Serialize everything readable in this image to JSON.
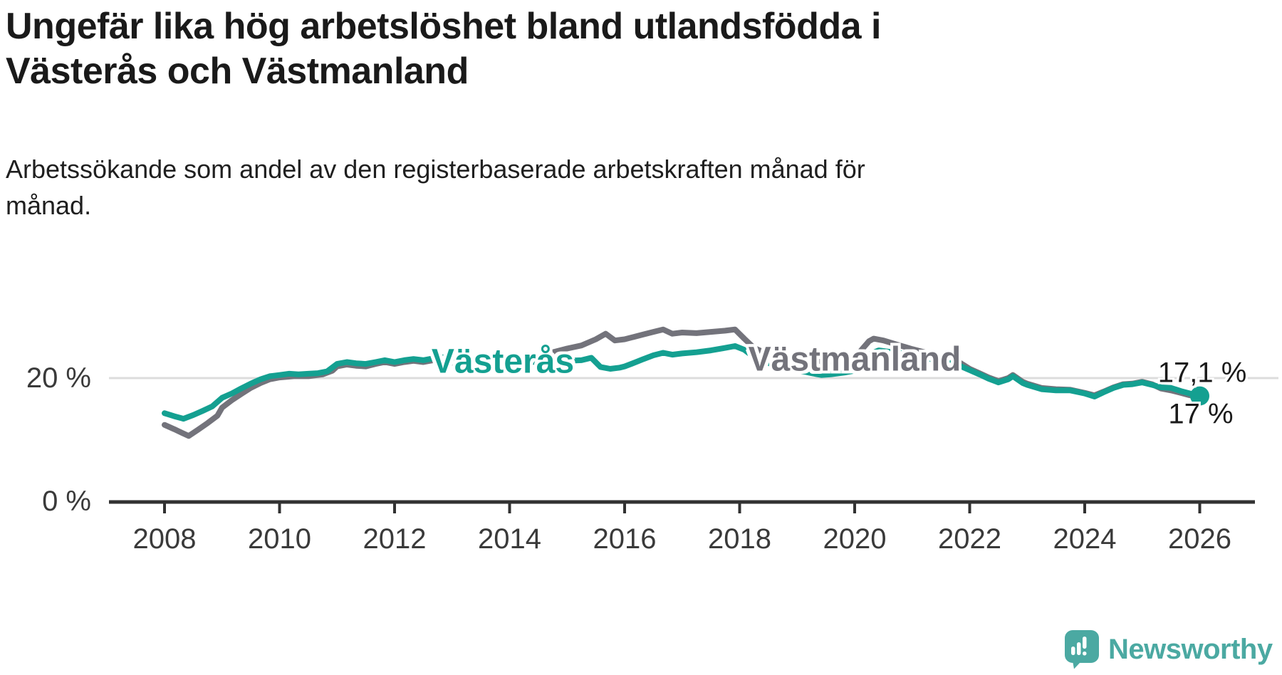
{
  "header": {
    "title": "Ungefär lika hög arbetslöshet bland utlandsfödda i Västerås och Västmanland",
    "title_lines": [
      "Ungefär lika hög arbetslöshet bland utlandsfödda i",
      "Västerås och Västmanland"
    ],
    "subtitle": "Arbetssökande som andel av den registerbaserade arbetskraften månad för månad.",
    "subtitle_lines": [
      "Arbetssökande som andel av den registerbaserade arbetskraften månad för",
      "månad."
    ]
  },
  "chart_data": {
    "type": "line",
    "title": "Ungefär lika hög arbetslöshet bland utlandsfödda i Västerås och Västmanland",
    "subtitle": "Arbetssökande som andel av den registerbaserade arbetskraften månad för månad.",
    "xlabel": "",
    "ylabel": "",
    "unit": "%",
    "xlim": [
      2007.1,
      2027.0
    ],
    "ylim": [
      0,
      30
    ],
    "grid": "horizontal, only at 20 %",
    "legend": "inline labels on lines",
    "x_ticks": [
      {
        "value": 2008,
        "label": "2008"
      },
      {
        "value": 2010,
        "label": "2010"
      },
      {
        "value": 2012,
        "label": "2012"
      },
      {
        "value": 2014,
        "label": "2014"
      },
      {
        "value": 2016,
        "label": "2016"
      },
      {
        "value": 2018,
        "label": "2018"
      },
      {
        "value": 2020,
        "label": "2020"
      },
      {
        "value": 2022,
        "label": "2022"
      },
      {
        "value": 2024,
        "label": "2024"
      },
      {
        "value": 2026,
        "label": "2026"
      }
    ],
    "y_ticks": [
      {
        "value": 20,
        "label": "20 %"
      },
      {
        "value": 0,
        "label": "0 %"
      }
    ],
    "series": [
      {
        "name": "Västmanland",
        "color": "#73737B",
        "end_value": 17.0,
        "end_label": "17 %",
        "end_dot": false,
        "points": [
          [
            2008.0,
            12.4
          ],
          [
            2008.17,
            11.7
          ],
          [
            2008.33,
            11.0
          ],
          [
            2008.42,
            10.6
          ],
          [
            2008.58,
            11.6
          ],
          [
            2008.75,
            12.7
          ],
          [
            2008.92,
            13.9
          ],
          [
            2009.0,
            15.2
          ],
          [
            2009.17,
            16.4
          ],
          [
            2009.33,
            17.4
          ],
          [
            2009.5,
            18.4
          ],
          [
            2009.67,
            19.2
          ],
          [
            2009.83,
            19.8
          ],
          [
            2010.0,
            20.1
          ],
          [
            2010.25,
            20.3
          ],
          [
            2010.5,
            20.3
          ],
          [
            2010.75,
            20.6
          ],
          [
            2010.92,
            21.2
          ],
          [
            2011.0,
            21.9
          ],
          [
            2011.17,
            22.2
          ],
          [
            2011.33,
            22.0
          ],
          [
            2011.5,
            21.9
          ],
          [
            2011.67,
            22.3
          ],
          [
            2011.83,
            22.6
          ],
          [
            2012.0,
            22.3
          ],
          [
            2012.17,
            22.6
          ],
          [
            2012.33,
            22.8
          ],
          [
            2012.5,
            22.6
          ],
          [
            2012.67,
            22.9
          ],
          [
            2012.83,
            23.0
          ],
          [
            2013.0,
            22.5
          ],
          [
            2013.25,
            22.4
          ],
          [
            2013.5,
            22.6
          ],
          [
            2013.75,
            22.9
          ],
          [
            2014.0,
            23.2
          ],
          [
            2014.25,
            23.4
          ],
          [
            2014.5,
            23.7
          ],
          [
            2014.75,
            24.2
          ],
          [
            2015.0,
            24.8
          ],
          [
            2015.25,
            25.3
          ],
          [
            2015.5,
            26.3
          ],
          [
            2015.67,
            27.2
          ],
          [
            2015.83,
            26.1
          ],
          [
            2016.0,
            26.3
          ],
          [
            2016.17,
            26.7
          ],
          [
            2016.33,
            27.1
          ],
          [
            2016.5,
            27.5
          ],
          [
            2016.67,
            27.9
          ],
          [
            2016.83,
            27.2
          ],
          [
            2017.0,
            27.4
          ],
          [
            2017.25,
            27.3
          ],
          [
            2017.5,
            27.5
          ],
          [
            2017.75,
            27.7
          ],
          [
            2017.92,
            27.9
          ],
          [
            2018.08,
            26.4
          ],
          [
            2018.25,
            24.9
          ],
          [
            2018.42,
            24.2
          ],
          [
            2018.58,
            23.8
          ],
          [
            2018.75,
            23.4
          ],
          [
            2019.0,
            23.0
          ],
          [
            2019.25,
            22.7
          ],
          [
            2019.5,
            22.6
          ],
          [
            2019.75,
            22.9
          ],
          [
            2020.0,
            23.3
          ],
          [
            2020.25,
            26.0
          ],
          [
            2020.33,
            26.4
          ],
          [
            2020.5,
            26.1
          ],
          [
            2020.75,
            25.4
          ],
          [
            2021.0,
            24.7
          ],
          [
            2021.25,
            24.1
          ],
          [
            2021.5,
            23.6
          ],
          [
            2021.67,
            23.2
          ],
          [
            2021.83,
            22.5
          ],
          [
            2022.0,
            21.5
          ],
          [
            2022.17,
            20.8
          ],
          [
            2022.33,
            20.1
          ],
          [
            2022.5,
            19.5
          ],
          [
            2022.67,
            20.0
          ],
          [
            2022.75,
            20.5
          ],
          [
            2022.92,
            19.4
          ],
          [
            2023.0,
            19.1
          ],
          [
            2023.25,
            18.4
          ],
          [
            2023.5,
            18.2
          ],
          [
            2023.75,
            18.1
          ],
          [
            2024.0,
            17.6
          ],
          [
            2024.17,
            17.2
          ],
          [
            2024.33,
            17.8
          ],
          [
            2024.5,
            18.5
          ],
          [
            2024.67,
            19.0
          ],
          [
            2024.83,
            19.1
          ],
          [
            2025.0,
            19.4
          ],
          [
            2025.17,
            19.0
          ],
          [
            2025.33,
            18.3
          ],
          [
            2025.5,
            18.0
          ],
          [
            2025.67,
            17.6
          ],
          [
            2025.83,
            17.2
          ],
          [
            2026.0,
            17.0
          ]
        ]
      },
      {
        "name": "Västerås",
        "color": "#14A091",
        "end_value": 17.1,
        "end_label": "17,1 %",
        "end_dot": true,
        "points": [
          [
            2008.0,
            14.3
          ],
          [
            2008.17,
            13.8
          ],
          [
            2008.33,
            13.4
          ],
          [
            2008.5,
            14.0
          ],
          [
            2008.67,
            14.7
          ],
          [
            2008.83,
            15.4
          ],
          [
            2009.0,
            16.8
          ],
          [
            2009.17,
            17.5
          ],
          [
            2009.33,
            18.3
          ],
          [
            2009.5,
            19.1
          ],
          [
            2009.67,
            19.8
          ],
          [
            2009.83,
            20.3
          ],
          [
            2010.0,
            20.5
          ],
          [
            2010.17,
            20.7
          ],
          [
            2010.33,
            20.6
          ],
          [
            2010.5,
            20.7
          ],
          [
            2010.67,
            20.8
          ],
          [
            2010.83,
            21.1
          ],
          [
            2011.0,
            22.3
          ],
          [
            2011.17,
            22.6
          ],
          [
            2011.33,
            22.4
          ],
          [
            2011.5,
            22.3
          ],
          [
            2011.67,
            22.6
          ],
          [
            2011.83,
            22.9
          ],
          [
            2012.0,
            22.6
          ],
          [
            2012.17,
            22.9
          ],
          [
            2012.33,
            23.1
          ],
          [
            2012.5,
            22.9
          ],
          [
            2012.67,
            23.2
          ],
          [
            2012.83,
            23.4
          ],
          [
            2013.0,
            22.9
          ],
          [
            2013.25,
            22.7
          ],
          [
            2013.5,
            22.8
          ],
          [
            2013.75,
            23.0
          ],
          [
            2014.0,
            22.9
          ],
          [
            2014.25,
            22.7
          ],
          [
            2014.5,
            22.6
          ],
          [
            2014.75,
            22.8
          ],
          [
            2015.0,
            22.8
          ],
          [
            2015.25,
            22.9
          ],
          [
            2015.42,
            23.3
          ],
          [
            2015.58,
            21.8
          ],
          [
            2015.75,
            21.5
          ],
          [
            2015.92,
            21.7
          ],
          [
            2016.0,
            21.9
          ],
          [
            2016.17,
            22.5
          ],
          [
            2016.33,
            23.1
          ],
          [
            2016.5,
            23.7
          ],
          [
            2016.67,
            24.1
          ],
          [
            2016.83,
            23.8
          ],
          [
            2017.0,
            24.0
          ],
          [
            2017.25,
            24.2
          ],
          [
            2017.5,
            24.5
          ],
          [
            2017.75,
            24.9
          ],
          [
            2017.92,
            25.2
          ],
          [
            2018.08,
            24.6
          ],
          [
            2018.25,
            23.4
          ],
          [
            2018.42,
            22.7
          ],
          [
            2018.58,
            22.2
          ],
          [
            2018.75,
            21.8
          ],
          [
            2019.0,
            21.3
          ],
          [
            2019.25,
            20.8
          ],
          [
            2019.42,
            20.5
          ],
          [
            2019.58,
            20.6
          ],
          [
            2019.83,
            20.9
          ],
          [
            2020.0,
            21.2
          ],
          [
            2020.25,
            23.8
          ],
          [
            2020.42,
            24.5
          ],
          [
            2020.58,
            24.3
          ],
          [
            2020.83,
            24.0
          ],
          [
            2021.0,
            23.7
          ],
          [
            2021.25,
            23.2
          ],
          [
            2021.5,
            22.8
          ],
          [
            2021.75,
            22.3
          ],
          [
            2022.0,
            21.3
          ],
          [
            2022.17,
            20.6
          ],
          [
            2022.33,
            19.9
          ],
          [
            2022.5,
            19.3
          ],
          [
            2022.67,
            19.8
          ],
          [
            2022.75,
            20.3
          ],
          [
            2022.92,
            19.2
          ],
          [
            2023.0,
            18.9
          ],
          [
            2023.25,
            18.2
          ],
          [
            2023.5,
            18.0
          ],
          [
            2023.75,
            18.0
          ],
          [
            2024.0,
            17.5
          ],
          [
            2024.17,
            17.0
          ],
          [
            2024.33,
            17.7
          ],
          [
            2024.5,
            18.4
          ],
          [
            2024.67,
            18.9
          ],
          [
            2024.83,
            19.0
          ],
          [
            2025.0,
            19.3
          ],
          [
            2025.17,
            18.9
          ],
          [
            2025.33,
            18.5
          ],
          [
            2025.5,
            18.4
          ],
          [
            2025.67,
            17.9
          ],
          [
            2025.83,
            17.5
          ],
          [
            2026.0,
            17.1
          ]
        ]
      }
    ]
  },
  "branding": {
    "logo_text": "Newsworthy",
    "logo_color": "#4BA9A2",
    "logo_icon": "speech-bubble-bar-chart"
  },
  "colors": {
    "vasteras_line": "#14A091",
    "vastmanland_line": "#73737B",
    "axis": "#323232",
    "gridline": "#DCDCDC",
    "text_dark": "#1a1a1a"
  }
}
